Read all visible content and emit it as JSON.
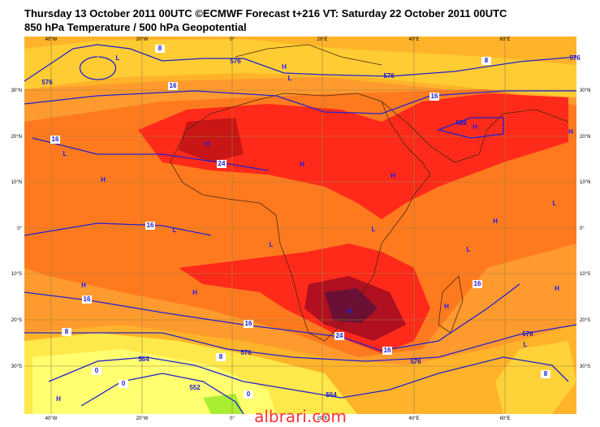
{
  "header": {
    "title": "Thursday 13 October 2011 00UTC ©ECMWF Forecast t+216 VT: Saturday 22 October 2011 00UTC",
    "subtitle": "850 hPa Temperature / 500 hPa Geopotential"
  },
  "map": {
    "lon_labels": [
      "40°W",
      "20°W",
      "0°",
      "20°E",
      "40°E",
      "60°E"
    ],
    "lat_labels": [
      "30°N",
      "20°N",
      "10°N",
      "0°",
      "10°S",
      "20°S",
      "30°S"
    ],
    "pressure_centers": [
      "L",
      "H",
      "L",
      "H",
      "H",
      "L",
      "H",
      "H",
      "H",
      "H",
      "L",
      "H",
      "L",
      "L",
      "L",
      "L",
      "H",
      "H",
      "H",
      "H",
      "H",
      "L",
      "H"
    ],
    "contour_labels": [
      "8",
      "576",
      "576",
      "8",
      "576",
      "576",
      "16",
      "16",
      "588",
      "16",
      "24",
      "16",
      "16",
      "16",
      "16",
      "24",
      "8",
      "16",
      "576",
      "576",
      "576",
      "564",
      "8",
      "0",
      "0",
      "552",
      "564",
      "0",
      "8"
    ]
  },
  "watermark": "albrari.com"
}
